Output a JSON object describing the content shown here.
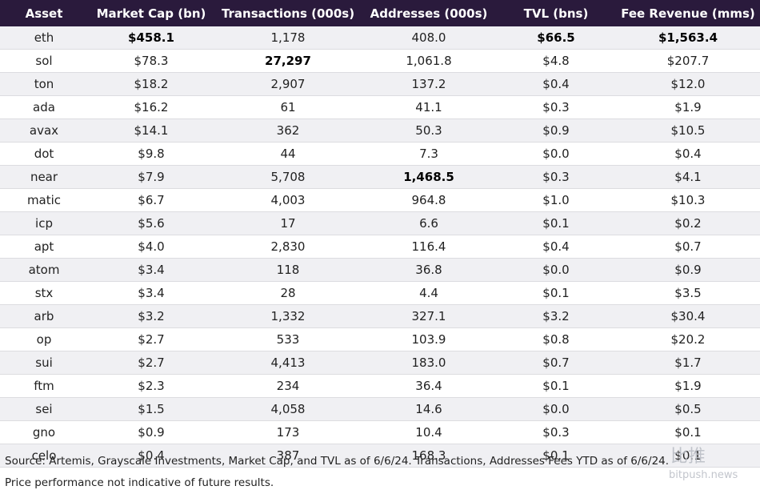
{
  "table": {
    "header": [
      "Asset",
      "Market Cap (bn)",
      "Transactions (000s)",
      "Addresses (000s)",
      "TVL (bns)",
      "Fee Revenue (mms)"
    ],
    "rows": [
      [
        "eth",
        "$458.1",
        "1,178",
        "408.0",
        "$66.5",
        "$1,563.4"
      ],
      [
        "sol",
        "$78.3",
        "27,297",
        "1,061.8",
        "$4.8",
        "$207.7"
      ],
      [
        "ton",
        "$18.2",
        "2,907",
        "137.2",
        "$0.4",
        "$12.0"
      ],
      [
        "ada",
        "$16.2",
        "61",
        "41.1",
        "$0.3",
        "$1.9"
      ],
      [
        "avax",
        "$14.1",
        "362",
        "50.3",
        "$0.9",
        "$10.5"
      ],
      [
        "dot",
        "$9.8",
        "44",
        "7.3",
        "$0.0",
        "$0.4"
      ],
      [
        "near",
        "$7.9",
        "5,708",
        "1,468.5",
        "$0.3",
        "$4.1"
      ],
      [
        "matic",
        "$6.7",
        "4,003",
        "964.8",
        "$1.0",
        "$10.3"
      ],
      [
        "icp",
        "$5.6",
        "17",
        "6.6",
        "$0.1",
        "$0.2"
      ],
      [
        "apt",
        "$4.0",
        "2,830",
        "116.4",
        "$0.4",
        "$0.7"
      ],
      [
        "atom",
        "$3.4",
        "118",
        "36.8",
        "$0.0",
        "$0.9"
      ],
      [
        "stx",
        "$3.4",
        "28",
        "4.4",
        "$0.1",
        "$3.5"
      ],
      [
        "arb",
        "$3.2",
        "1,332",
        "327.1",
        "$3.2",
        "$30.4"
      ],
      [
        "op",
        "$2.7",
        "533",
        "103.9",
        "$0.8",
        "$20.2"
      ],
      [
        "sui",
        "$2.7",
        "4,413",
        "183.0",
        "$0.7",
        "$1.7"
      ],
      [
        "ftm",
        "$2.3",
        "234",
        "36.4",
        "$0.1",
        "$1.9"
      ],
      [
        "sei",
        "$1.5",
        "4,058",
        "14.6",
        "$0.0",
        "$0.5"
      ],
      [
        "gno",
        "$0.9",
        "173",
        "10.4",
        "$0.3",
        "$0.1"
      ],
      [
        "celo",
        "$0.4",
        "387",
        "168.3",
        "$0.1",
        "$0.1"
      ]
    ],
    "bold": [
      [
        0,
        1
      ],
      [
        0,
        4
      ],
      [
        0,
        5
      ],
      [
        1,
        2
      ],
      [
        6,
        3
      ]
    ]
  },
  "footnotes": [
    "Source: Artemis, Grayscale Investments, Market Cap, and TVL as of 6/6/24. Transactions, Addresses Fees YTD as of 6/6/24.",
    "Price performance not indicative of future results."
  ],
  "watermark": {
    "logo": "比推",
    "site": "bitpush.news"
  }
}
